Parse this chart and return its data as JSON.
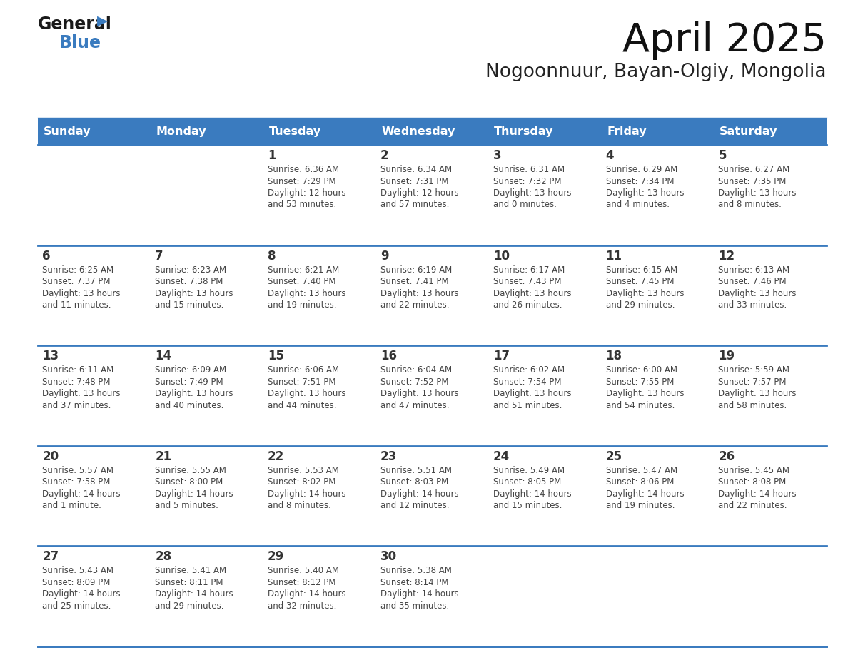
{
  "title": "April 2025",
  "subtitle": "Nogoonnuur, Bayan-Olgiy, Mongolia",
  "header_bg_color": "#3a7bbf",
  "header_text_color": "#ffffff",
  "cell_bg_color": "#ffffff",
  "day_number_color": "#333333",
  "cell_text_color": "#444444",
  "grid_line_color": "#3a7bbf",
  "weekdays": [
    "Sunday",
    "Monday",
    "Tuesday",
    "Wednesday",
    "Thursday",
    "Friday",
    "Saturday"
  ],
  "weeks": [
    [
      {
        "day": null,
        "sunrise": null,
        "sunset": null,
        "daylight": ""
      },
      {
        "day": null,
        "sunrise": null,
        "sunset": null,
        "daylight": ""
      },
      {
        "day": 1,
        "sunrise": "6:36 AM",
        "sunset": "7:29 PM",
        "daylight": "12 hours\nand 53 minutes."
      },
      {
        "day": 2,
        "sunrise": "6:34 AM",
        "sunset": "7:31 PM",
        "daylight": "12 hours\nand 57 minutes."
      },
      {
        "day": 3,
        "sunrise": "6:31 AM",
        "sunset": "7:32 PM",
        "daylight": "13 hours\nand 0 minutes."
      },
      {
        "day": 4,
        "sunrise": "6:29 AM",
        "sunset": "7:34 PM",
        "daylight": "13 hours\nand 4 minutes."
      },
      {
        "day": 5,
        "sunrise": "6:27 AM",
        "sunset": "7:35 PM",
        "daylight": "13 hours\nand 8 minutes."
      }
    ],
    [
      {
        "day": 6,
        "sunrise": "6:25 AM",
        "sunset": "7:37 PM",
        "daylight": "13 hours\nand 11 minutes."
      },
      {
        "day": 7,
        "sunrise": "6:23 AM",
        "sunset": "7:38 PM",
        "daylight": "13 hours\nand 15 minutes."
      },
      {
        "day": 8,
        "sunrise": "6:21 AM",
        "sunset": "7:40 PM",
        "daylight": "13 hours\nand 19 minutes."
      },
      {
        "day": 9,
        "sunrise": "6:19 AM",
        "sunset": "7:41 PM",
        "daylight": "13 hours\nand 22 minutes."
      },
      {
        "day": 10,
        "sunrise": "6:17 AM",
        "sunset": "7:43 PM",
        "daylight": "13 hours\nand 26 minutes."
      },
      {
        "day": 11,
        "sunrise": "6:15 AM",
        "sunset": "7:45 PM",
        "daylight": "13 hours\nand 29 minutes."
      },
      {
        "day": 12,
        "sunrise": "6:13 AM",
        "sunset": "7:46 PM",
        "daylight": "13 hours\nand 33 minutes."
      }
    ],
    [
      {
        "day": 13,
        "sunrise": "6:11 AM",
        "sunset": "7:48 PM",
        "daylight": "13 hours\nand 37 minutes."
      },
      {
        "day": 14,
        "sunrise": "6:09 AM",
        "sunset": "7:49 PM",
        "daylight": "13 hours\nand 40 minutes."
      },
      {
        "day": 15,
        "sunrise": "6:06 AM",
        "sunset": "7:51 PM",
        "daylight": "13 hours\nand 44 minutes."
      },
      {
        "day": 16,
        "sunrise": "6:04 AM",
        "sunset": "7:52 PM",
        "daylight": "13 hours\nand 47 minutes."
      },
      {
        "day": 17,
        "sunrise": "6:02 AM",
        "sunset": "7:54 PM",
        "daylight": "13 hours\nand 51 minutes."
      },
      {
        "day": 18,
        "sunrise": "6:00 AM",
        "sunset": "7:55 PM",
        "daylight": "13 hours\nand 54 minutes."
      },
      {
        "day": 19,
        "sunrise": "5:59 AM",
        "sunset": "7:57 PM",
        "daylight": "13 hours\nand 58 minutes."
      }
    ],
    [
      {
        "day": 20,
        "sunrise": "5:57 AM",
        "sunset": "7:58 PM",
        "daylight": "14 hours\nand 1 minute."
      },
      {
        "day": 21,
        "sunrise": "5:55 AM",
        "sunset": "8:00 PM",
        "daylight": "14 hours\nand 5 minutes."
      },
      {
        "day": 22,
        "sunrise": "5:53 AM",
        "sunset": "8:02 PM",
        "daylight": "14 hours\nand 8 minutes."
      },
      {
        "day": 23,
        "sunrise": "5:51 AM",
        "sunset": "8:03 PM",
        "daylight": "14 hours\nand 12 minutes."
      },
      {
        "day": 24,
        "sunrise": "5:49 AM",
        "sunset": "8:05 PM",
        "daylight": "14 hours\nand 15 minutes."
      },
      {
        "day": 25,
        "sunrise": "5:47 AM",
        "sunset": "8:06 PM",
        "daylight": "14 hours\nand 19 minutes."
      },
      {
        "day": 26,
        "sunrise": "5:45 AM",
        "sunset": "8:08 PM",
        "daylight": "14 hours\nand 22 minutes."
      }
    ],
    [
      {
        "day": 27,
        "sunrise": "5:43 AM",
        "sunset": "8:09 PM",
        "daylight": "14 hours\nand 25 minutes."
      },
      {
        "day": 28,
        "sunrise": "5:41 AM",
        "sunset": "8:11 PM",
        "daylight": "14 hours\nand 29 minutes."
      },
      {
        "day": 29,
        "sunrise": "5:40 AM",
        "sunset": "8:12 PM",
        "daylight": "14 hours\nand 32 minutes."
      },
      {
        "day": 30,
        "sunrise": "5:38 AM",
        "sunset": "8:14 PM",
        "daylight": "14 hours\nand 35 minutes."
      },
      {
        "day": null,
        "sunrise": null,
        "sunset": null,
        "daylight": ""
      },
      {
        "day": null,
        "sunrise": null,
        "sunset": null,
        "daylight": ""
      },
      {
        "day": null,
        "sunrise": null,
        "sunset": null,
        "daylight": ""
      }
    ]
  ],
  "logo_general_color": "#1a1a1a",
  "logo_blue_color": "#3a7bbf",
  "logo_triangle_color": "#3a7bbf"
}
